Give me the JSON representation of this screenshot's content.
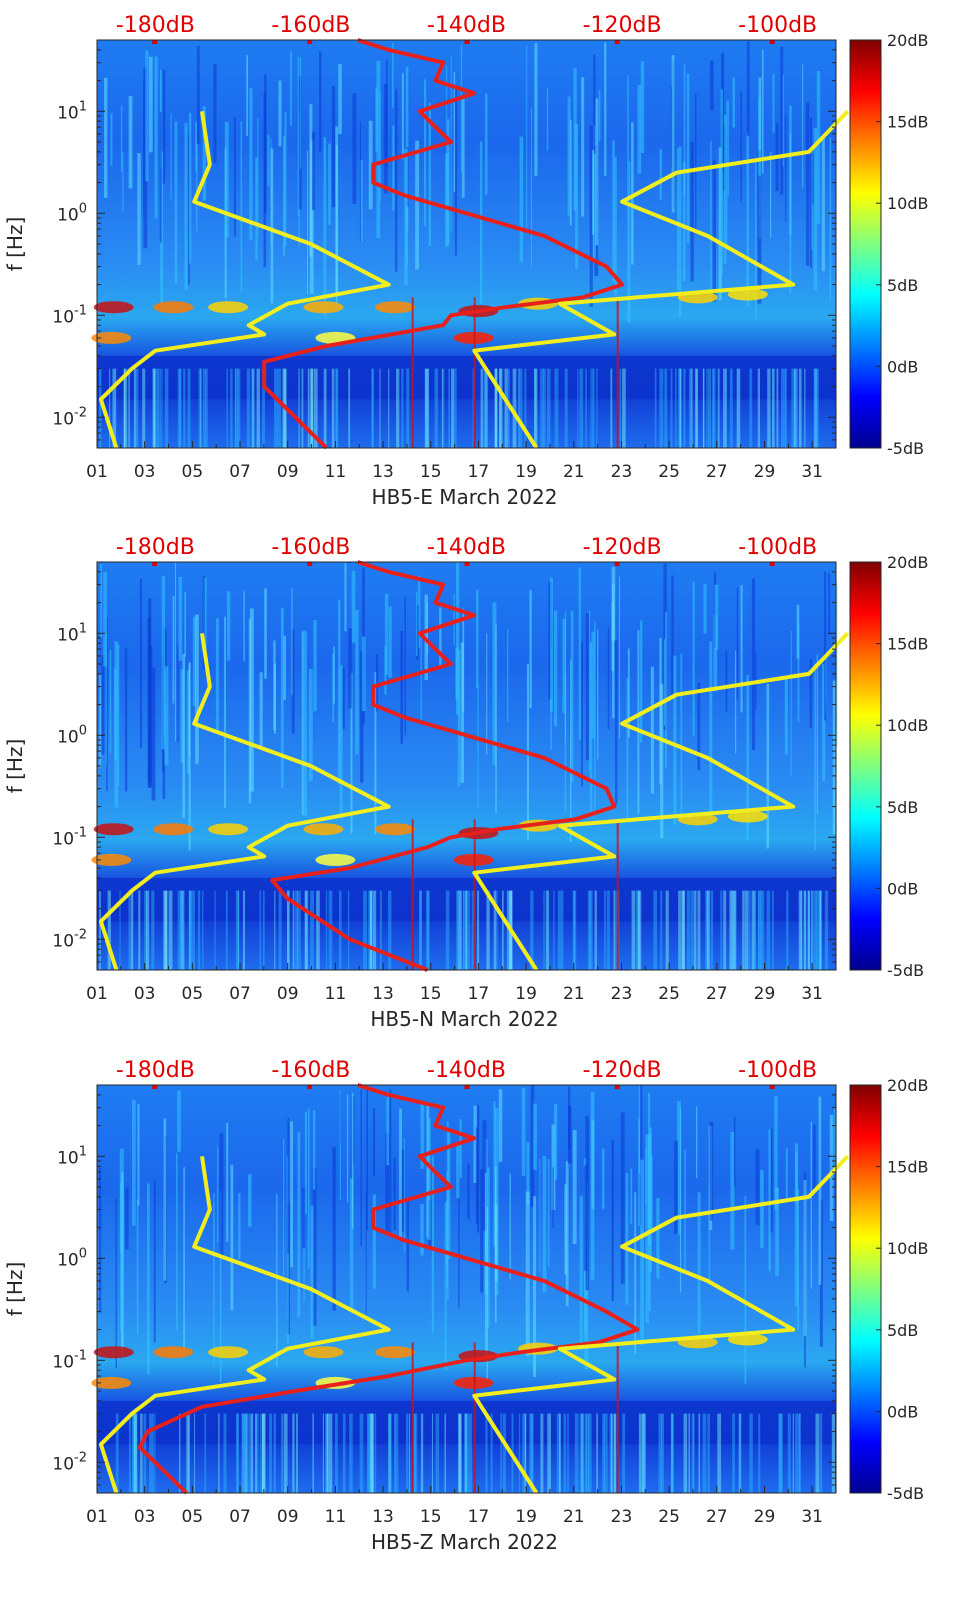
{
  "colors": {
    "red_curve": "#e8201c",
    "yellow_curve": "#f2ee1e",
    "top_axis_text": "#e00000",
    "axis_text": "#262626"
  },
  "colormap": "jet",
  "chart_data": [
    {
      "type": "heatmap",
      "title": "",
      "xlabel": "HB5-E March 2022",
      "ylabel": "f [Hz]",
      "y_scale": "log",
      "ylim": [
        0.005,
        50
      ],
      "xlim": [
        1,
        32
      ],
      "x_tick_labels": [
        "01",
        "03",
        "05",
        "07",
        "09",
        "11",
        "13",
        "15",
        "17",
        "19",
        "21",
        "23",
        "25",
        "27",
        "29",
        "31"
      ],
      "y_tick_labels": [
        "10^-2",
        "10^-1",
        "10^0",
        "10^1"
      ],
      "top_axis": {
        "labels": [
          "-180dB",
          "-160dB",
          "-140dB",
          "-120dB",
          "-100dB"
        ],
        "db_range": [
          -187.5,
          -92.5
        ]
      },
      "colorbar": {
        "labels": [
          "20dB",
          "15dB",
          "10dB",
          "5dB",
          "0dB",
          "-5dB"
        ],
        "range": [
          -5,
          20
        ]
      },
      "series": [
        {
          "name": "ambient noise PSD (red)",
          "color": "#e8201c",
          "f": [
            50,
            40,
            30,
            20,
            15,
            10,
            7,
            5,
            3,
            2,
            1.5,
            1,
            0.6,
            0.3,
            0.2,
            0.15,
            0.12,
            0.1,
            0.08,
            0.05,
            0.035,
            0.02,
            0.01,
            0.005
          ],
          "db": [
            -154,
            -150,
            -143,
            -144,
            -139,
            -146,
            -144,
            -142,
            -152,
            -152,
            -148,
            -140,
            -130,
            -122,
            -120,
            -125,
            -135,
            -142,
            -143,
            -158,
            -166,
            -166,
            -162,
            -158
          ]
        },
        {
          "name": "NLNM (yellow)",
          "color": "#f2ee1e",
          "f": [
            10,
            3,
            1.3,
            0.5,
            0.2,
            0.13,
            0.08,
            0.065,
            0.045,
            0.03,
            0.015,
            0.005
          ],
          "db": [
            -174,
            -173,
            -175,
            -160,
            -150,
            -163,
            -168,
            -166,
            -180,
            -183,
            -187,
            -185
          ]
        },
        {
          "name": "NHNM (yellow)",
          "color": "#f2ee1e",
          "f": [
            10,
            4,
            2.5,
            1.3,
            0.6,
            0.2,
            0.13,
            0.065,
            0.045,
            0.005
          ],
          "db": [
            -91,
            -96,
            -113,
            -120,
            -109,
            -98,
            -128,
            -121,
            -139,
            -131
          ]
        }
      ]
    },
    {
      "type": "heatmap",
      "title": "",
      "xlabel": "HB5-N March 2022",
      "ylabel": "f [Hz]",
      "y_scale": "log",
      "ylim": [
        0.005,
        50
      ],
      "xlim": [
        1,
        32
      ],
      "x_tick_labels": [
        "01",
        "03",
        "05",
        "07",
        "09",
        "11",
        "13",
        "15",
        "17",
        "19",
        "21",
        "23",
        "25",
        "27",
        "29",
        "31"
      ],
      "y_tick_labels": [
        "10^-2",
        "10^-1",
        "10^0",
        "10^1"
      ],
      "top_axis": {
        "labels": [
          "-180dB",
          "-160dB",
          "-140dB",
          "-120dB",
          "-100dB"
        ],
        "db_range": [
          -187.5,
          -92.5
        ]
      },
      "colorbar": {
        "labels": [
          "20dB",
          "15dB",
          "10dB",
          "5dB",
          "0dB",
          "-5dB"
        ],
        "range": [
          -5,
          20
        ]
      },
      "series": [
        {
          "name": "ambient noise PSD (red)",
          "color": "#e8201c",
          "f": [
            50,
            40,
            30,
            20,
            15,
            10,
            7,
            5,
            3,
            2,
            1.5,
            1,
            0.6,
            0.3,
            0.2,
            0.15,
            0.12,
            0.1,
            0.08,
            0.05,
            0.038,
            0.025,
            0.01,
            0.005
          ],
          "db": [
            -154,
            -150,
            -143,
            -144,
            -139,
            -146,
            -144,
            -142,
            -152,
            -152,
            -148,
            -140,
            -130,
            -122,
            -121,
            -126,
            -136,
            -142,
            -145,
            -155,
            -165,
            -163,
            -155,
            -145
          ]
        },
        {
          "name": "NLNM (yellow)",
          "color": "#f2ee1e",
          "f": [
            10,
            3,
            1.3,
            0.5,
            0.2,
            0.13,
            0.08,
            0.065,
            0.045,
            0.03,
            0.015,
            0.005
          ],
          "db": [
            -174,
            -173,
            -175,
            -160,
            -150,
            -163,
            -168,
            -166,
            -180,
            -183,
            -187,
            -185
          ]
        },
        {
          "name": "NHNM (yellow)",
          "color": "#f2ee1e",
          "f": [
            10,
            4,
            2.5,
            1.3,
            0.6,
            0.2,
            0.13,
            0.065,
            0.045,
            0.005
          ],
          "db": [
            -91,
            -96,
            -113,
            -120,
            -109,
            -98,
            -128,
            -121,
            -139,
            -131
          ]
        }
      ]
    },
    {
      "type": "heatmap",
      "title": "",
      "xlabel": "HB5-Z March 2022",
      "ylabel": "f [Hz]",
      "y_scale": "log",
      "ylim": [
        0.005,
        50
      ],
      "xlim": [
        1,
        32
      ],
      "x_tick_labels": [
        "01",
        "03",
        "05",
        "07",
        "09",
        "11",
        "13",
        "15",
        "17",
        "19",
        "21",
        "23",
        "25",
        "27",
        "29",
        "31"
      ],
      "y_tick_labels": [
        "10^-2",
        "10^-1",
        "10^0",
        "10^1"
      ],
      "top_axis": {
        "labels": [
          "-180dB",
          "-160dB",
          "-140dB",
          "-120dB",
          "-100dB"
        ],
        "db_range": [
          -187.5,
          -92.5
        ]
      },
      "colorbar": {
        "labels": [
          "20dB",
          "15dB",
          "10dB",
          "5dB",
          "0dB",
          "-5dB"
        ],
        "range": [
          -5,
          20
        ]
      },
      "series": [
        {
          "name": "ambient noise PSD (red)",
          "color": "#e8201c",
          "f": [
            50,
            40,
            30,
            20,
            15,
            10,
            7,
            5,
            3,
            2,
            1.5,
            1,
            0.6,
            0.3,
            0.2,
            0.15,
            0.12,
            0.1,
            0.07,
            0.05,
            0.035,
            0.02,
            0.014,
            0.005
          ],
          "db": [
            -154,
            -150,
            -143,
            -144,
            -139,
            -146,
            -144,
            -142,
            -152,
            -152,
            -148,
            -140,
            -130,
            -122,
            -118,
            -123,
            -133,
            -140,
            -150,
            -162,
            -174,
            -181,
            -182,
            -176
          ]
        },
        {
          "name": "NLNM (yellow)",
          "color": "#f2ee1e",
          "f": [
            10,
            3,
            1.3,
            0.5,
            0.2,
            0.13,
            0.08,
            0.065,
            0.045,
            0.03,
            0.015,
            0.005
          ],
          "db": [
            -174,
            -173,
            -175,
            -160,
            -150,
            -163,
            -168,
            -166,
            -180,
            -183,
            -187,
            -185
          ]
        },
        {
          "name": "NHNM (yellow)",
          "color": "#f2ee1e",
          "f": [
            10,
            4,
            2.5,
            1.3,
            0.6,
            0.2,
            0.13,
            0.065,
            0.045,
            0.005
          ],
          "db": [
            -91,
            -96,
            -113,
            -120,
            -109,
            -98,
            -128,
            -121,
            -139,
            -131
          ]
        }
      ]
    }
  ]
}
